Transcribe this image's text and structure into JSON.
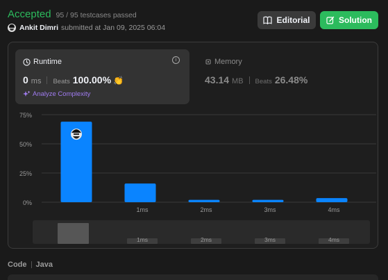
{
  "header": {
    "status": "Accepted",
    "testcases": "95 / 95 testcases passed",
    "author": "Ankit Dimri",
    "submitted_text": "submitted at Jan 09, 2025 06:04",
    "editorial_label": "Editorial",
    "solution_label": "Solution"
  },
  "runtime": {
    "title": "Runtime",
    "value": "0",
    "unit": "ms",
    "beats_label": "Beats",
    "beats_value": "100.00%",
    "analyze_label": "Analyze Complexity"
  },
  "memory": {
    "title": "Memory",
    "value": "43.14",
    "unit": "MB",
    "beats_label": "Beats",
    "beats_value": "26.48%"
  },
  "chart_data": {
    "type": "bar",
    "categories": [
      "",
      "1ms",
      "2ms",
      "3ms",
      "4ms"
    ],
    "values": [
      69,
      16,
      2,
      2,
      3.5
    ],
    "ylim": [
      0,
      75
    ],
    "yticks": [
      "0%",
      "25%",
      "50%",
      "75%"
    ],
    "grid": true
  },
  "navigator": {
    "labels": [
      "1ms",
      "2ms",
      "3ms",
      "4ms"
    ]
  },
  "code_section": {
    "label": "Code",
    "language": "Java"
  },
  "colors": {
    "accent_green": "#2cbb5d",
    "bar_blue": "#0a84ff",
    "analyze_purple": "#a07cf0"
  }
}
